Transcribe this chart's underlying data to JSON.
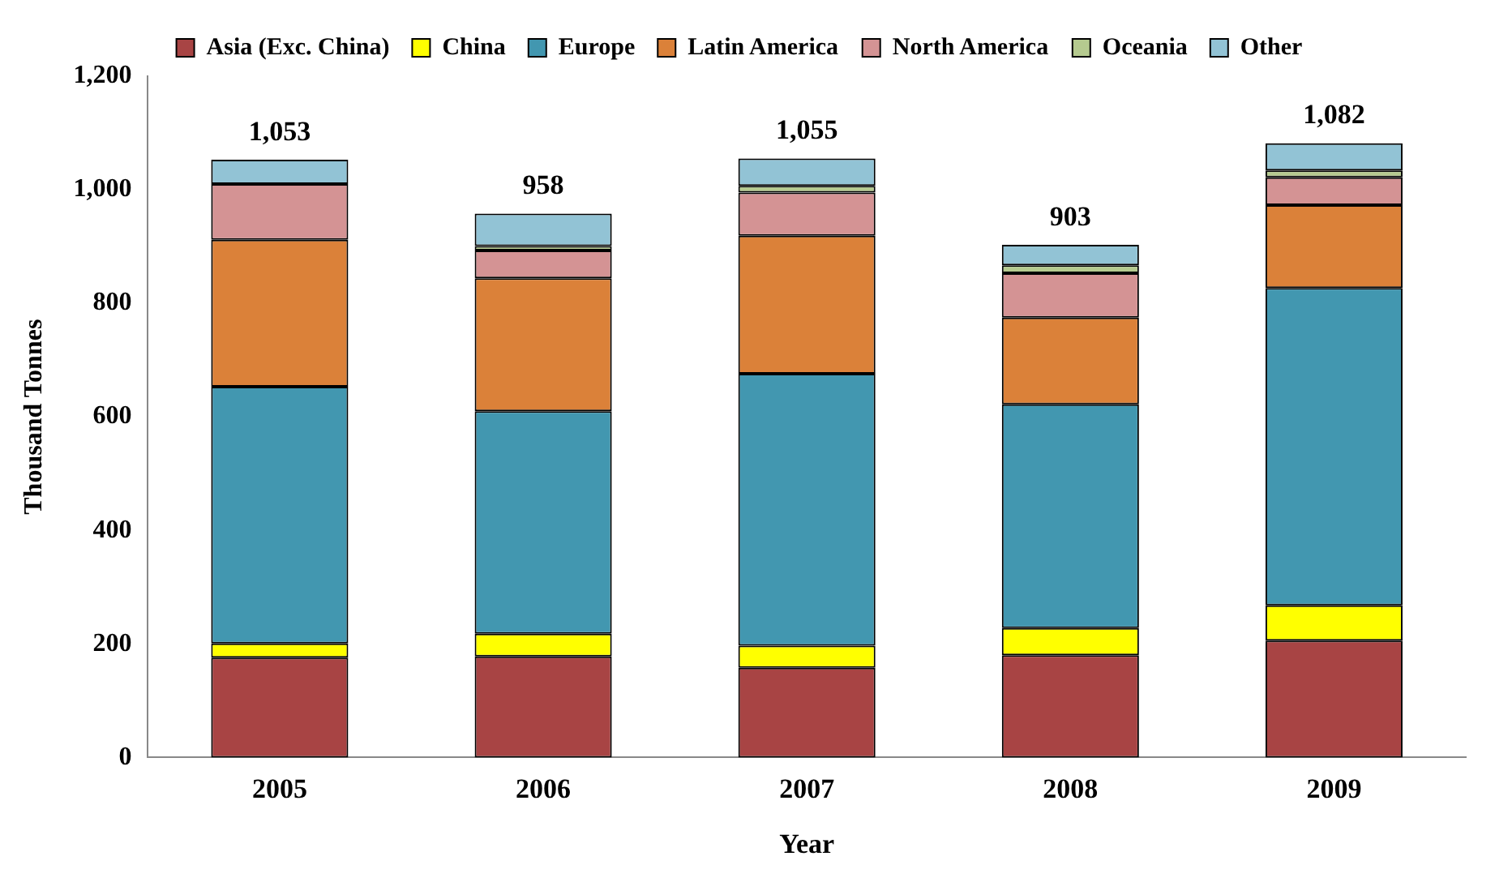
{
  "chart_data": {
    "type": "bar",
    "stacked": true,
    "xlabel": "Year",
    "ylabel": "Thousand Tonnes",
    "categories": [
      "2005",
      "2006",
      "2007",
      "2008",
      "2009"
    ],
    "series": [
      {
        "name": "Asia (Exc. China)",
        "color": "#a84444",
        "values": [
          176,
          178,
          158,
          180,
          206
        ]
      },
      {
        "name": "China",
        "color": "#ffff00",
        "values": [
          25,
          40,
          39,
          48,
          62
        ]
      },
      {
        "name": "Europe",
        "color": "#4297b0",
        "values": [
          452,
          392,
          479,
          394,
          559
        ]
      },
      {
        "name": "Latin America",
        "color": "#db8139",
        "values": [
          259,
          234,
          243,
          153,
          146
        ]
      },
      {
        "name": "North America",
        "color": "#d49394",
        "values": [
          98,
          49,
          76,
          78,
          49
        ]
      },
      {
        "name": "Oceania",
        "color": "#b5ca8f",
        "values": [
          0,
          8,
          12,
          14,
          12
        ]
      },
      {
        "name": "Other",
        "color": "#92c3d5",
        "values": [
          43,
          57,
          48,
          36,
          48
        ]
      }
    ],
    "totals": [
      "1,053",
      "958",
      "1,055",
      "903",
      "1,082"
    ],
    "ylim": [
      0,
      1200
    ],
    "yticks": [
      0,
      200,
      400,
      600,
      800,
      {
        "value": 1000,
        "label": "1,000"
      },
      {
        "value": 1200,
        "label": "1,200"
      }
    ],
    "grid": false,
    "legend": "top"
  }
}
